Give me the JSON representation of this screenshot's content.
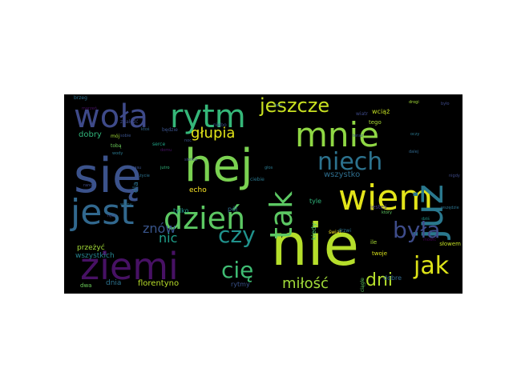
{
  "palette": {
    "bg": "#000000",
    "c1": "#a8dc3c",
    "c2": "#d9e21f",
    "c3": "#5fc862",
    "c4": "#2fb47c",
    "c5": "#21908d",
    "c6": "#2f6b8e",
    "c7": "#3b528b",
    "c8": "#472d7b",
    "c9": "#440154",
    "c10": "#7ad151"
  },
  "words": [
    {
      "text": "się",
      "size": 60,
      "color": "#3b528b"
    },
    {
      "text": "hej",
      "size": 56,
      "color": "#7ad151"
    },
    {
      "text": "nie",
      "size": 72,
      "color": "#b5de2b"
    },
    {
      "text": "wiem",
      "size": 44,
      "color": "#e3e41a"
    },
    {
      "text": "mnie",
      "size": 42,
      "color": "#8fd744"
    },
    {
      "text": "już",
      "size": 48,
      "color": "#2a788e",
      "rotate": true
    },
    {
      "text": "tak",
      "size": 38,
      "color": "#5cc863",
      "rotate": true
    },
    {
      "text": "jest",
      "size": 44,
      "color": "#31688e"
    },
    {
      "text": "dzień",
      "size": 38,
      "color": "#5cc863"
    },
    {
      "text": "ziemi",
      "size": 46,
      "color": "#471164"
    },
    {
      "text": "woła",
      "size": 40,
      "color": "#3e4a89"
    },
    {
      "text": "rytm",
      "size": 40,
      "color": "#35b779"
    },
    {
      "text": "jeszcze",
      "size": 24,
      "color": "#c8e020"
    },
    {
      "text": "niech",
      "size": 30,
      "color": "#2c728e"
    },
    {
      "text": "była",
      "size": 28,
      "color": "#3e4c8a"
    },
    {
      "text": "jak",
      "size": 30,
      "color": "#dde318"
    },
    {
      "text": "czy",
      "size": 28,
      "color": "#20928c"
    },
    {
      "text": "cię",
      "size": 28,
      "color": "#3fbc73"
    },
    {
      "text": "dni",
      "size": 22,
      "color": "#b5de2b"
    },
    {
      "text": "miłość",
      "size": 18,
      "color": "#a0da39"
    },
    {
      "text": "głupia",
      "size": 18,
      "color": "#e3e418"
    },
    {
      "text": "znów",
      "size": 16,
      "color": "#39558c"
    },
    {
      "text": "nic",
      "size": 16,
      "color": "#1f9e89"
    },
    {
      "text": "wszystko",
      "size": 10,
      "color": "#2e6e8e"
    },
    {
      "text": "dla",
      "size": 9,
      "color": "#2c728e",
      "rotate": true
    },
    {
      "text": "dobry",
      "size": 10,
      "color": "#31b57b"
    },
    {
      "text": "przeżyć",
      "size": 9,
      "color": "#a2da37"
    },
    {
      "text": "wszystkich",
      "size": 9,
      "color": "#26828e"
    },
    {
      "text": "dnia",
      "size": 9,
      "color": "#2c728e"
    },
    {
      "text": "florentyno",
      "size": 10,
      "color": "#b8de29"
    },
    {
      "text": "echo",
      "size": 9,
      "color": "#fde725"
    },
    {
      "text": "tylko",
      "size": 8,
      "color": "#1f958b"
    },
    {
      "text": "pól",
      "size": 8,
      "color": "#2e6f8e"
    },
    {
      "text": "rytmy",
      "size": 8,
      "color": "#3b528b"
    },
    {
      "text": "dobre",
      "size": 8,
      "color": "#31688e"
    },
    {
      "text": "kiedy",
      "size": 8,
      "color": "#4ac16d",
      "rotate": true
    },
    {
      "text": "tyle",
      "size": 8,
      "color": "#31b57b"
    },
    {
      "text": "wciąż",
      "size": 8,
      "color": "#c2df23"
    },
    {
      "text": "tego",
      "size": 7,
      "color": "#a8db34"
    },
    {
      "text": "jesteś",
      "size": 7,
      "color": "#453882"
    },
    {
      "text": "twoje",
      "size": 7,
      "color": "#d8e219"
    },
    {
      "text": "ile",
      "size": 7,
      "color": "#a8db34"
    },
    {
      "text": "słowem",
      "size": 7,
      "color": "#c2df23"
    },
    {
      "text": "dwa",
      "size": 7,
      "color": "#6ccd5a"
    },
    {
      "text": "będzie",
      "size": 6,
      "color": "#3b528b"
    },
    {
      "text": "ciebie",
      "size": 6,
      "color": "#2a788e"
    },
    {
      "text": "serce",
      "size": 6,
      "color": "#20a486"
    },
    {
      "text": "mój",
      "size": 6,
      "color": "#a2da37"
    },
    {
      "text": "tobą",
      "size": 6,
      "color": "#6ccd5a"
    },
    {
      "text": "świat",
      "size": 6,
      "color": "#fde725"
    },
    {
      "text": "drzwi",
      "size": 6,
      "color": "#2c728e"
    },
    {
      "text": "wiatr",
      "size": 6,
      "color": "#3e4a89"
    },
    {
      "text": "ciągle",
      "size": 6,
      "color": "#5ec962",
      "rotate": true
    },
    {
      "text": "niebo",
      "size": 6,
      "color": "#3b528b"
    },
    {
      "text": "brzeg",
      "size": 6,
      "color": "#2c728e"
    },
    {
      "text": "znaleźć",
      "size": 6,
      "color": "#3e4a89"
    },
    {
      "text": "wody",
      "size": 5,
      "color": "#2a788e"
    },
    {
      "text": "domu",
      "size": 5,
      "color": "#471164"
    },
    {
      "text": "słońca",
      "size": 5,
      "color": "#3e4a89"
    },
    {
      "text": "czasu",
      "size": 5,
      "color": "#3b528b"
    },
    {
      "text": "życie",
      "size": 5,
      "color": "#2c728e"
    },
    {
      "text": "drogi",
      "size": 5,
      "color": "#a2da37"
    },
    {
      "text": "dziś",
      "size": 5,
      "color": "#1f958b"
    },
    {
      "text": "było",
      "size": 5,
      "color": "#3e4a89"
    },
    {
      "text": "mówić",
      "size": 5,
      "color": "#440154"
    },
    {
      "text": "oczy",
      "size": 5,
      "color": "#2a788e"
    },
    {
      "text": "sobie",
      "size": 5,
      "color": "#3b528b"
    },
    {
      "text": "ktoś",
      "size": 5,
      "color": "#31688e"
    },
    {
      "text": "ręce",
      "size": 5,
      "color": "#3e4a89"
    },
    {
      "text": "wszędzie",
      "size": 5,
      "color": "#2c728e"
    },
    {
      "text": "jutro",
      "size": 5,
      "color": "#31b57b"
    },
    {
      "text": "noc",
      "size": 5,
      "color": "#3b528b"
    },
    {
      "text": "tam",
      "size": 5,
      "color": "#31688e"
    },
    {
      "text": "ktory",
      "size": 5,
      "color": "#5ec962"
    },
    {
      "text": "rano",
      "size": 5,
      "color": "#3e4a89"
    },
    {
      "text": "marzeń",
      "size": 5,
      "color": "#471164"
    },
    {
      "text": "głos",
      "size": 5,
      "color": "#2a788e"
    },
    {
      "text": "dalej",
      "size": 5,
      "color": "#31688e"
    },
    {
      "text": "teraz",
      "size": 5,
      "color": "#3b528b"
    },
    {
      "text": "wolny",
      "size": 5,
      "color": "#2c728e"
    },
    {
      "text": "nigdy",
      "size": 5,
      "color": "#3e4a89"
    }
  ]
}
